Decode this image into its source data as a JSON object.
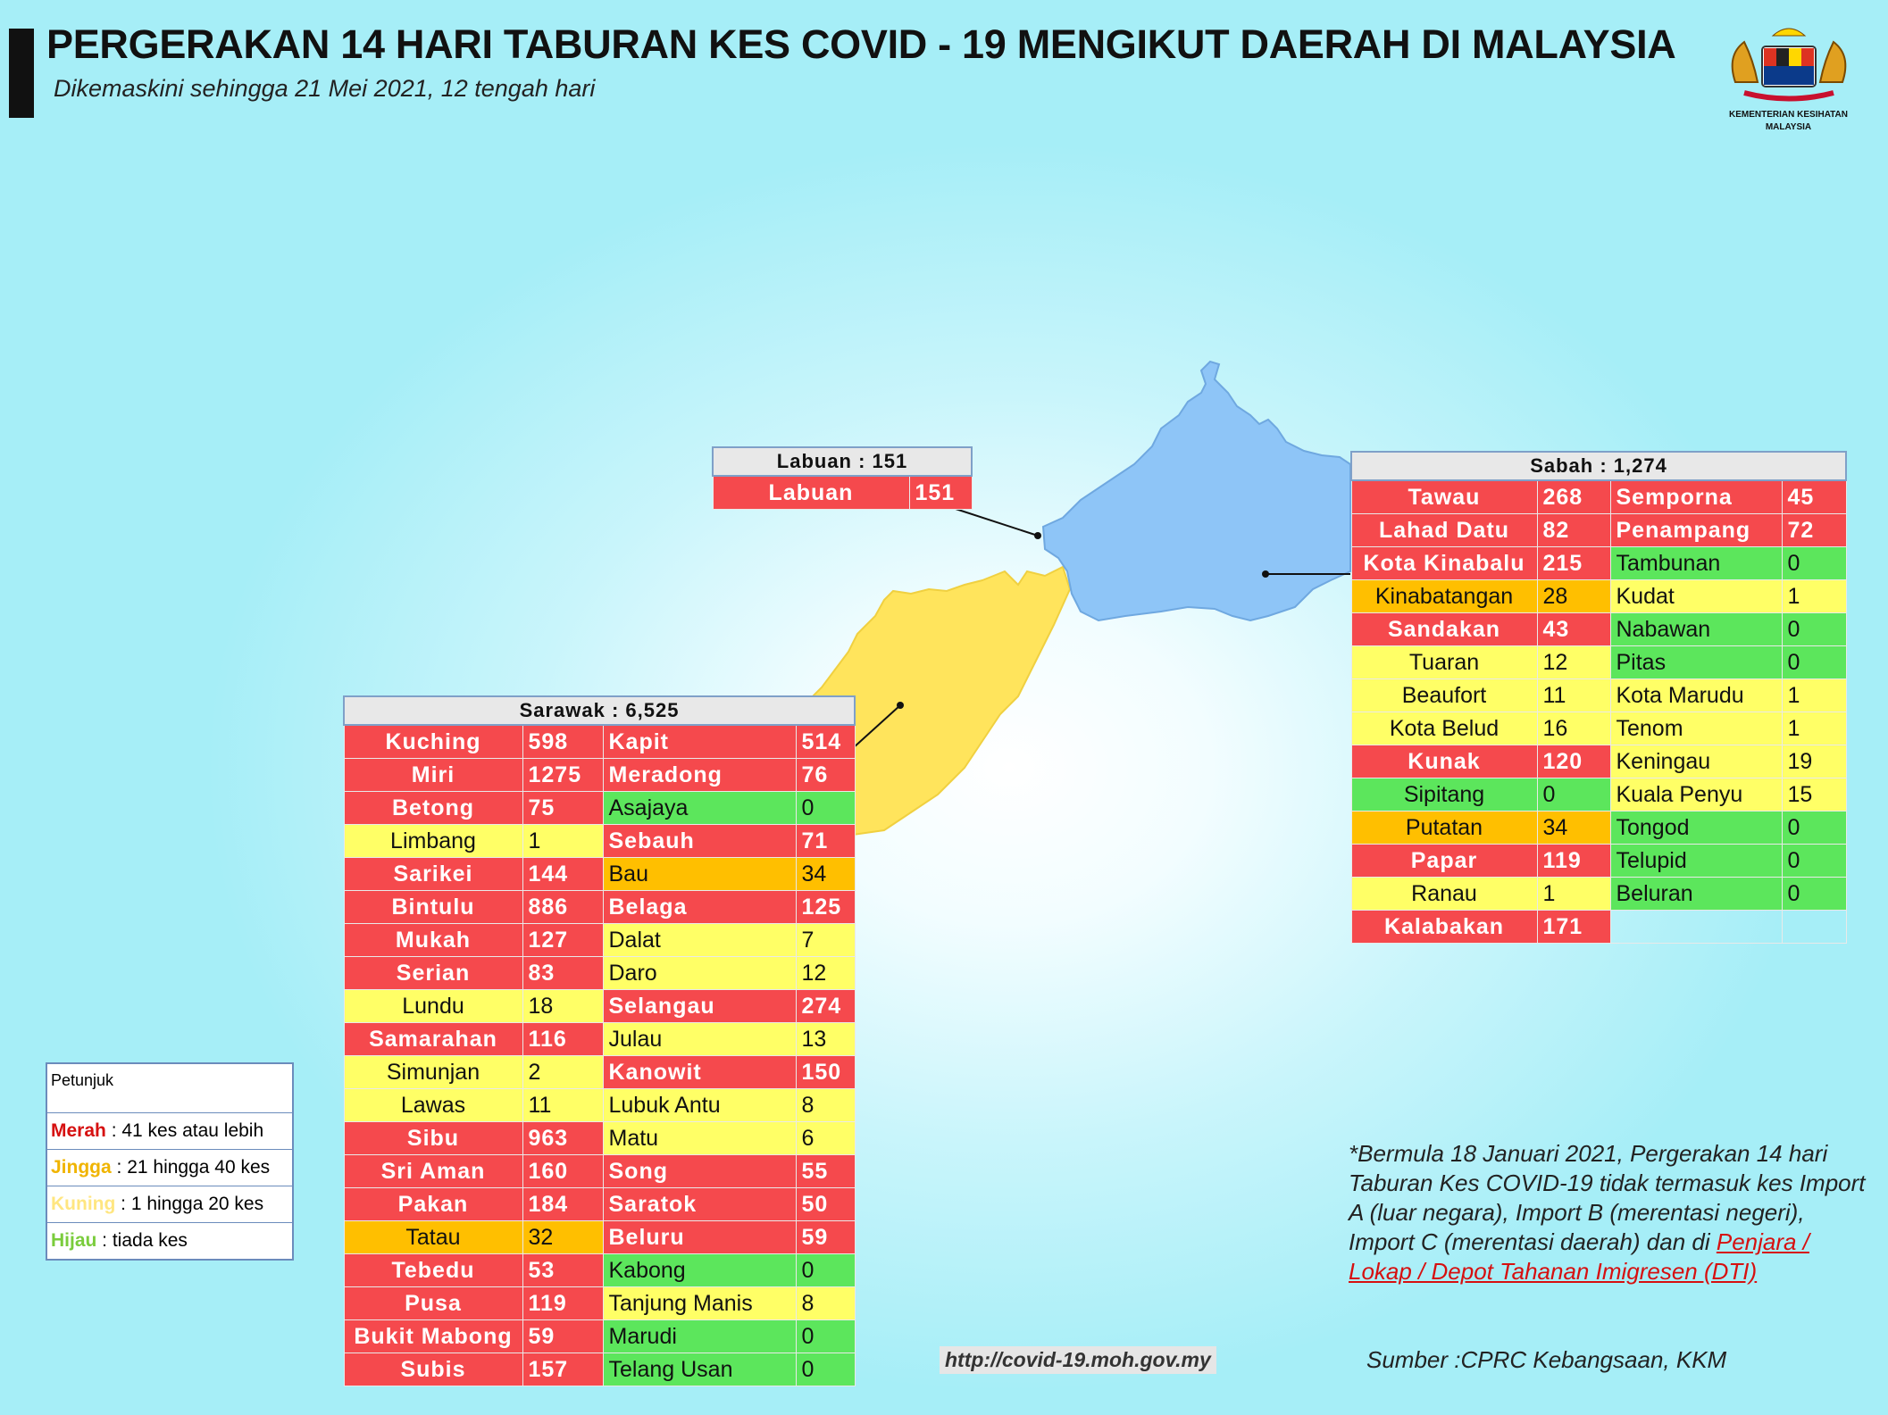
{
  "header": {
    "title": "PERGERAKAN 14 HARI TABURAN KES COVID - 19 MENGIKUT DAERAH DI MALAYSIA",
    "subtitle": "Dikemaskini sehingga 21 Mei 2021, 12 tengah hari",
    "logo_text": "KEMENTERIAN KESIHATAN",
    "logo_text2": "MALAYSIA"
  },
  "colors": {
    "merah": "#f5494d",
    "jingga": "#ffbf00",
    "kuning": "#ffff66",
    "hijau": "#5ce65c",
    "sabah_map": "#8ec5f7",
    "sarawak_map": "#ffe45c"
  },
  "labuan": {
    "header": "Labuan : 151",
    "rows": [
      {
        "name": "Labuan",
        "value": "151",
        "level": "red"
      }
    ]
  },
  "sabah": {
    "header": "Sabah : 1,274",
    "rows": [
      [
        {
          "name": "Tawau",
          "value": "268",
          "level": "red"
        },
        {
          "name": "Semporna",
          "value": "45",
          "level": "red"
        }
      ],
      [
        {
          "name": "Lahad Datu",
          "value": "82",
          "level": "red"
        },
        {
          "name": "Penampang",
          "value": "72",
          "level": "red"
        }
      ],
      [
        {
          "name": "Kota Kinabalu",
          "value": "215",
          "level": "red"
        },
        {
          "name": "Tambunan",
          "value": "0",
          "level": "green"
        }
      ],
      [
        {
          "name": "Kinabatangan",
          "value": "28",
          "level": "orange"
        },
        {
          "name": "Kudat",
          "value": "1",
          "level": "yellow"
        }
      ],
      [
        {
          "name": "Sandakan",
          "value": "43",
          "level": "red"
        },
        {
          "name": "Nabawan",
          "value": "0",
          "level": "green"
        }
      ],
      [
        {
          "name": "Tuaran",
          "value": "12",
          "level": "yellow"
        },
        {
          "name": "Pitas",
          "value": "0",
          "level": "green"
        }
      ],
      [
        {
          "name": "Beaufort",
          "value": "11",
          "level": "yellow"
        },
        {
          "name": "Kota Marudu",
          "value": "1",
          "level": "yellow"
        }
      ],
      [
        {
          "name": "Kota Belud",
          "value": "16",
          "level": "yellow"
        },
        {
          "name": "Tenom",
          "value": "1",
          "level": "yellow"
        }
      ],
      [
        {
          "name": "Kunak",
          "value": "120",
          "level": "red"
        },
        {
          "name": "Keningau",
          "value": "19",
          "level": "yellow"
        }
      ],
      [
        {
          "name": "Sipitang",
          "value": "0",
          "level": "green"
        },
        {
          "name": "Kuala Penyu",
          "value": "15",
          "level": "yellow"
        }
      ],
      [
        {
          "name": "Putatan",
          "value": "34",
          "level": "orange"
        },
        {
          "name": "Tongod",
          "value": "0",
          "level": "green"
        }
      ],
      [
        {
          "name": "Papar",
          "value": "119",
          "level": "red"
        },
        {
          "name": "Telupid",
          "value": "0",
          "level": "green"
        }
      ],
      [
        {
          "name": "Ranau",
          "value": "1",
          "level": "yellow"
        },
        {
          "name": "Beluran",
          "value": "0",
          "level": "green"
        }
      ],
      [
        {
          "name": "Kalabakan",
          "value": "171",
          "level": "red"
        },
        {
          "name": "",
          "value": "",
          "level": "empty"
        }
      ]
    ]
  },
  "sarawak": {
    "header": "Sarawak : 6,525",
    "rows": [
      [
        {
          "name": "Kuching",
          "value": "598",
          "level": "red"
        },
        {
          "name": "Kapit",
          "value": "514",
          "level": "red"
        }
      ],
      [
        {
          "name": "Miri",
          "value": "1275",
          "level": "red"
        },
        {
          "name": "Meradong",
          "value": "76",
          "level": "red"
        }
      ],
      [
        {
          "name": "Betong",
          "value": "75",
          "level": "red"
        },
        {
          "name": "Asajaya",
          "value": "0",
          "level": "green"
        }
      ],
      [
        {
          "name": "Limbang",
          "value": "1",
          "level": "yellow"
        },
        {
          "name": "Sebauh",
          "value": "71",
          "level": "red"
        }
      ],
      [
        {
          "name": "Sarikei",
          "value": "144",
          "level": "red"
        },
        {
          "name": "Bau",
          "value": "34",
          "level": "orange"
        }
      ],
      [
        {
          "name": "Bintulu",
          "value": "886",
          "level": "red"
        },
        {
          "name": "Belaga",
          "value": "125",
          "level": "red"
        }
      ],
      [
        {
          "name": "Mukah",
          "value": "127",
          "level": "red"
        },
        {
          "name": "Dalat",
          "value": "7",
          "level": "yellow"
        }
      ],
      [
        {
          "name": "Serian",
          "value": "83",
          "level": "red"
        },
        {
          "name": "Daro",
          "value": "12",
          "level": "yellow"
        }
      ],
      [
        {
          "name": "Lundu",
          "value": "18",
          "level": "yellow"
        },
        {
          "name": "Selangau",
          "value": "274",
          "level": "red"
        }
      ],
      [
        {
          "name": "Samarahan",
          "value": "116",
          "level": "red"
        },
        {
          "name": "Julau",
          "value": "13",
          "level": "yellow"
        }
      ],
      [
        {
          "name": "Simunjan",
          "value": "2",
          "level": "yellow"
        },
        {
          "name": "Kanowit",
          "value": "150",
          "level": "red"
        }
      ],
      [
        {
          "name": "Lawas",
          "value": "11",
          "level": "yellow"
        },
        {
          "name": "Lubuk Antu",
          "value": "8",
          "level": "yellow"
        }
      ],
      [
        {
          "name": "Sibu",
          "value": "963",
          "level": "red"
        },
        {
          "name": "Matu",
          "value": "6",
          "level": "yellow"
        }
      ],
      [
        {
          "name": "Sri Aman",
          "value": "160",
          "level": "red"
        },
        {
          "name": "Song",
          "value": "55",
          "level": "red"
        }
      ],
      [
        {
          "name": "Pakan",
          "value": "184",
          "level": "red"
        },
        {
          "name": "Saratok",
          "value": "50",
          "level": "red"
        }
      ],
      [
        {
          "name": "Tatau",
          "value": "32",
          "level": "orange"
        },
        {
          "name": "Beluru",
          "value": "59",
          "level": "red"
        }
      ],
      [
        {
          "name": "Tebedu",
          "value": "53",
          "level": "red"
        },
        {
          "name": "Kabong",
          "value": "0",
          "level": "green"
        }
      ],
      [
        {
          "name": "Pusa",
          "value": "119",
          "level": "red"
        },
        {
          "name": "Tanjung Manis",
          "value": "8",
          "level": "yellow"
        }
      ],
      [
        {
          "name": "Bukit Mabong",
          "value": "59",
          "level": "red"
        },
        {
          "name": "Marudi",
          "value": "0",
          "level": "green"
        }
      ],
      [
        {
          "name": "Subis",
          "value": "157",
          "level": "red"
        },
        {
          "name": "Telang Usan",
          "value": "0",
          "level": "green"
        }
      ]
    ]
  },
  "legend": {
    "title": "Petunjuk",
    "items": [
      {
        "key": "Merah",
        "text": " : 41 kes atau lebih",
        "color": "#d61010"
      },
      {
        "key": "Jingga",
        "text": " : 21 hingga 40 kes",
        "color": "#f0b400"
      },
      {
        "key": "Kuning",
        "text": " : 1 hingga 20 kes",
        "color": "#ffe680"
      },
      {
        "key": "Hijau",
        "text": " : tiada kes",
        "color": "#7acc3c"
      }
    ]
  },
  "note": {
    "text": "*Bermula 18 Januari 2021, Pergerakan 14 hari Taburan Kes COVID-19 tidak termasuk kes Import A (luar negara), Import B (merentasi negeri), Import C (merentasi daerah) dan di ",
    "link": "Penjara / Lokap / Depot Tahanan Imigresen (DTI)"
  },
  "url": "http://covid-19.moh.gov.my",
  "source": "Sumber :CPRC Kebangsaan,  KKM"
}
